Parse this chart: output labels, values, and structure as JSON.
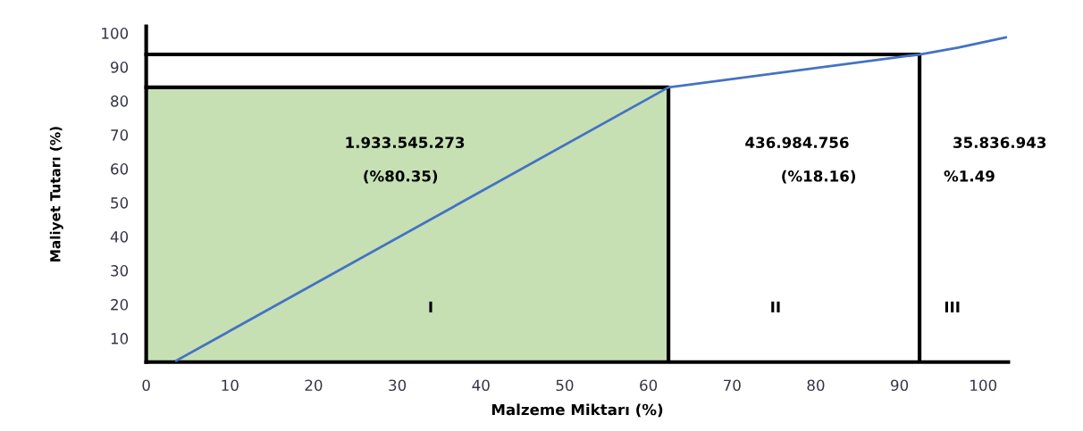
{
  "chart_data": {
    "type": "line",
    "xlabel": "Malzeme Miktarı (%)",
    "ylabel": "Maliyet Tutarı (%)",
    "xlim": [
      0,
      103
    ],
    "ylim": [
      3,
      102
    ],
    "xticks": [
      0,
      10,
      20,
      30,
      40,
      50,
      60,
      70,
      80,
      90,
      100
    ],
    "yticks": [
      10,
      20,
      30,
      40,
      50,
      60,
      70,
      80,
      90,
      100
    ],
    "grid": false,
    "legend": false,
    "marker": "none",
    "line_style": "solid",
    "series": [
      {
        "type": "area",
        "color": "#c6e0b4",
        "x": [
          0,
          62.4
        ],
        "values": [
          84,
          84
        ]
      },
      {
        "color": "#000000",
        "x": [
          0,
          62.4,
          62.4
        ],
        "values": [
          84,
          84,
          3.4
        ]
      },
      {
        "color": "#000000",
        "x": [
          0,
          92.4,
          92.4
        ],
        "values": [
          93.7,
          93.7,
          3.4
        ]
      },
      {
        "color": "#4472c4",
        "x": [
          3.6,
          62.4,
          92.4,
          97,
          102.7
        ],
        "values": [
          3.4,
          84,
          93.7,
          95.7,
          98.7
        ]
      }
    ],
    "annotations": [
      "1.933.545.273",
      "(%80.35)",
      "436.984.756",
      "(%18.16)",
      "35.836.943",
      "%1.49",
      "I",
      "II",
      "III"
    ]
  }
}
